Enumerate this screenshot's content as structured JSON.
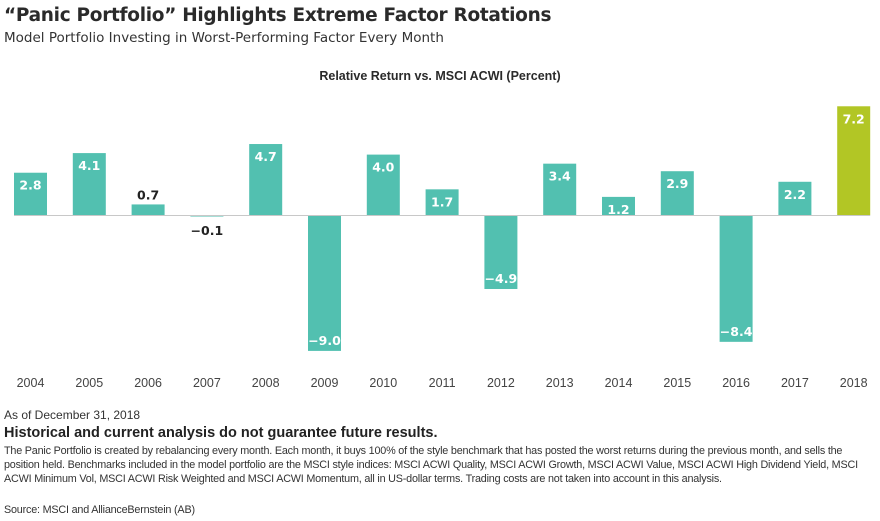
{
  "header": {
    "title": "“Panic Portfolio” Highlights Extreme Factor Rotations",
    "subtitle": "Model Portfolio Investing in Worst-Performing Factor Every Month"
  },
  "chart_data": {
    "type": "bar",
    "title": "Relative Return vs. MSCI ACWI (Percent)",
    "xlabel": "",
    "ylabel": "Relative Return vs. MSCI ACWI (Percent)",
    "categories": [
      "2004",
      "2005",
      "2006",
      "2007",
      "2008",
      "2009",
      "2010",
      "2011",
      "2012",
      "2013",
      "2014",
      "2015",
      "2016",
      "2017",
      "2018"
    ],
    "values": [
      2.8,
      4.1,
      0.7,
      -0.1,
      4.7,
      -9.0,
      4.0,
      1.7,
      -4.9,
      3.4,
      1.2,
      2.9,
      -8.4,
      2.2,
      7.2
    ],
    "data_labels": [
      "2.8",
      "4.1",
      "0.7",
      "−0.1",
      "4.7",
      "−9.0",
      "4.0",
      "1.7",
      "−4.9",
      "3.4",
      "1.2",
      "2.9",
      "−8.4",
      "2.2",
      "7.2"
    ],
    "ylim": [
      -9.0,
      7.2
    ],
    "grid": false,
    "legend": "none",
    "colors": {
      "default": "#52c0b0",
      "highlight": "#b2c625",
      "zero_line": "#c8c8c8",
      "label_inside": "#ffffff",
      "label_outside": "#222222"
    },
    "highlight_category": "2018"
  },
  "footer": {
    "as_of": "As of December 31, 2018",
    "disclaimer": "Historical and current analysis do not guarantee future results.",
    "note": "The Panic Portfolio is created by rebalancing every month. Each month, it buys 100% of the style benchmark that has posted the worst returns during the previous month, and sells the position held. Benchmarks included in the model portfolio are the MSCI style indices: MSCI ACWI Quality, MSCI ACWI Growth, MSCI ACWI Value, MSCI ACWI High Dividend Yield, MSCI ACWI Minimum Vol, MSCI ACWI Risk Weighted and MSCI ACWI Momentum, all in US-dollar terms. Trading costs are not taken into account in this analysis.",
    "source": "Source: MSCI and AllianceBernstein (AB)"
  }
}
